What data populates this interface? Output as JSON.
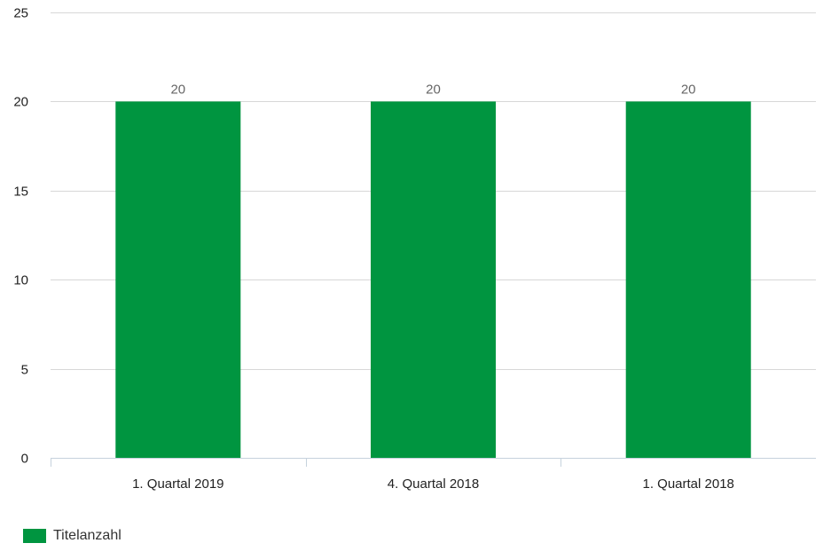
{
  "chart_data": {
    "type": "bar",
    "categories": [
      "1. Quartal 2019",
      "4. Quartal 2018",
      "1. Quartal 2018"
    ],
    "series": [
      {
        "name": "Titelanzahl",
        "values": [
          20,
          20,
          20
        ],
        "color": "#009540"
      }
    ],
    "ylim": [
      0,
      25
    ],
    "yticks": [
      0,
      5,
      10,
      15,
      20,
      25
    ],
    "grid": true,
    "data_labels": true,
    "legend_position": "bottom-left"
  }
}
